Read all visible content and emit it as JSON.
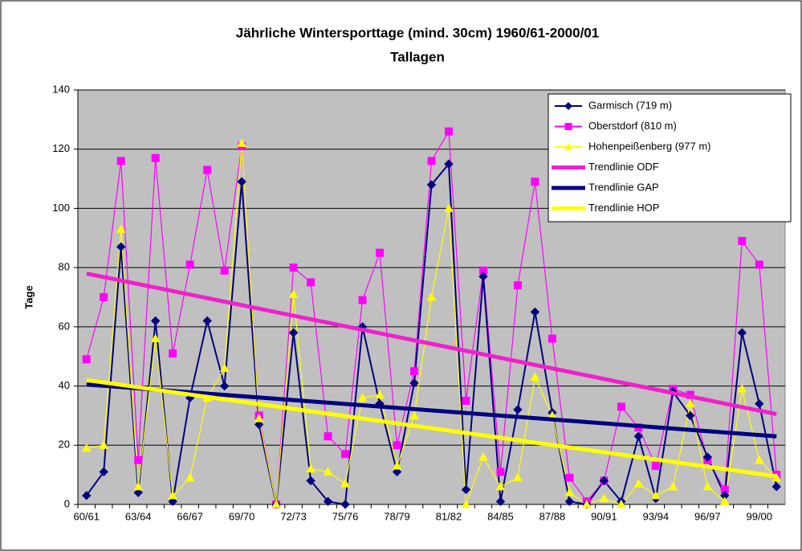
{
  "chart_data": {
    "type": "line",
    "title": "Jährliche Wintersporttage (mind. 30cm) 1960/61-2000/01",
    "subtitle": "Tallagen",
    "y_label": "Tage",
    "categories": [
      "60/61",
      null,
      null,
      "63/64",
      null,
      null,
      "66/67",
      null,
      null,
      "69/70",
      null,
      null,
      "72/73",
      null,
      null,
      "75/76",
      null,
      null,
      "78/79",
      null,
      null,
      "81/82",
      null,
      null,
      "84/85",
      null,
      null,
      "87/88",
      null,
      null,
      "90/91",
      null,
      null,
      "93/94",
      null,
      null,
      "96/97",
      null,
      null,
      "99/00",
      null
    ],
    "ylim": [
      0,
      140
    ],
    "yticks": [
      0,
      20,
      40,
      60,
      80,
      100,
      120,
      140
    ],
    "grid": true,
    "legend": "upper right",
    "series": [
      {
        "name": "Garmisch (719 m)",
        "color": "#000080",
        "marker": "diamond",
        "values": [
          3,
          11,
          87,
          4,
          62,
          1,
          36,
          62,
          40,
          109,
          27,
          0,
          58,
          8,
          1,
          0,
          60,
          34,
          11,
          41,
          108,
          115,
          5,
          77,
          1,
          32,
          65,
          31,
          1,
          0,
          8,
          1,
          23,
          2,
          38,
          30,
          16,
          3,
          58,
          34,
          6
        ]
      },
      {
        "name": "Oberstdorf (810 m)",
        "color": "#ff00ff",
        "marker": "square",
        "values": [
          49,
          70,
          116,
          15,
          117,
          51,
          81,
          113,
          79,
          121,
          30,
          0,
          80,
          75,
          23,
          17,
          69,
          85,
          20,
          45,
          116,
          126,
          35,
          79,
          11,
          74,
          109,
          56,
          9,
          1,
          8,
          33,
          26,
          13,
          39,
          37,
          15,
          5,
          89,
          81,
          10
        ]
      },
      {
        "name": "Hohenpeißenberg (977 m)",
        "color": "#ffff00",
        "marker": "triangle",
        "values": [
          19,
          20,
          93,
          6,
          56,
          3,
          9,
          36,
          46,
          122,
          29,
          0,
          71,
          12,
          11,
          7,
          36,
          37,
          13,
          30,
          70,
          100,
          0,
          16,
          6,
          9,
          43,
          30,
          4,
          0,
          2,
          0,
          7,
          3,
          6,
          34,
          6,
          1,
          39,
          15,
          9
        ]
      }
    ],
    "trendlines": [
      {
        "name": "Trendlinie ODF",
        "color": "#ee22cc",
        "values": [
          78,
          30.5
        ]
      },
      {
        "name": "Trendlinie GAP",
        "color": "#000080",
        "values": [
          40.5,
          23
        ]
      },
      {
        "name": "Trendlinie HOP",
        "color": "#ffff00",
        "values": [
          42,
          9.5
        ]
      }
    ]
  }
}
